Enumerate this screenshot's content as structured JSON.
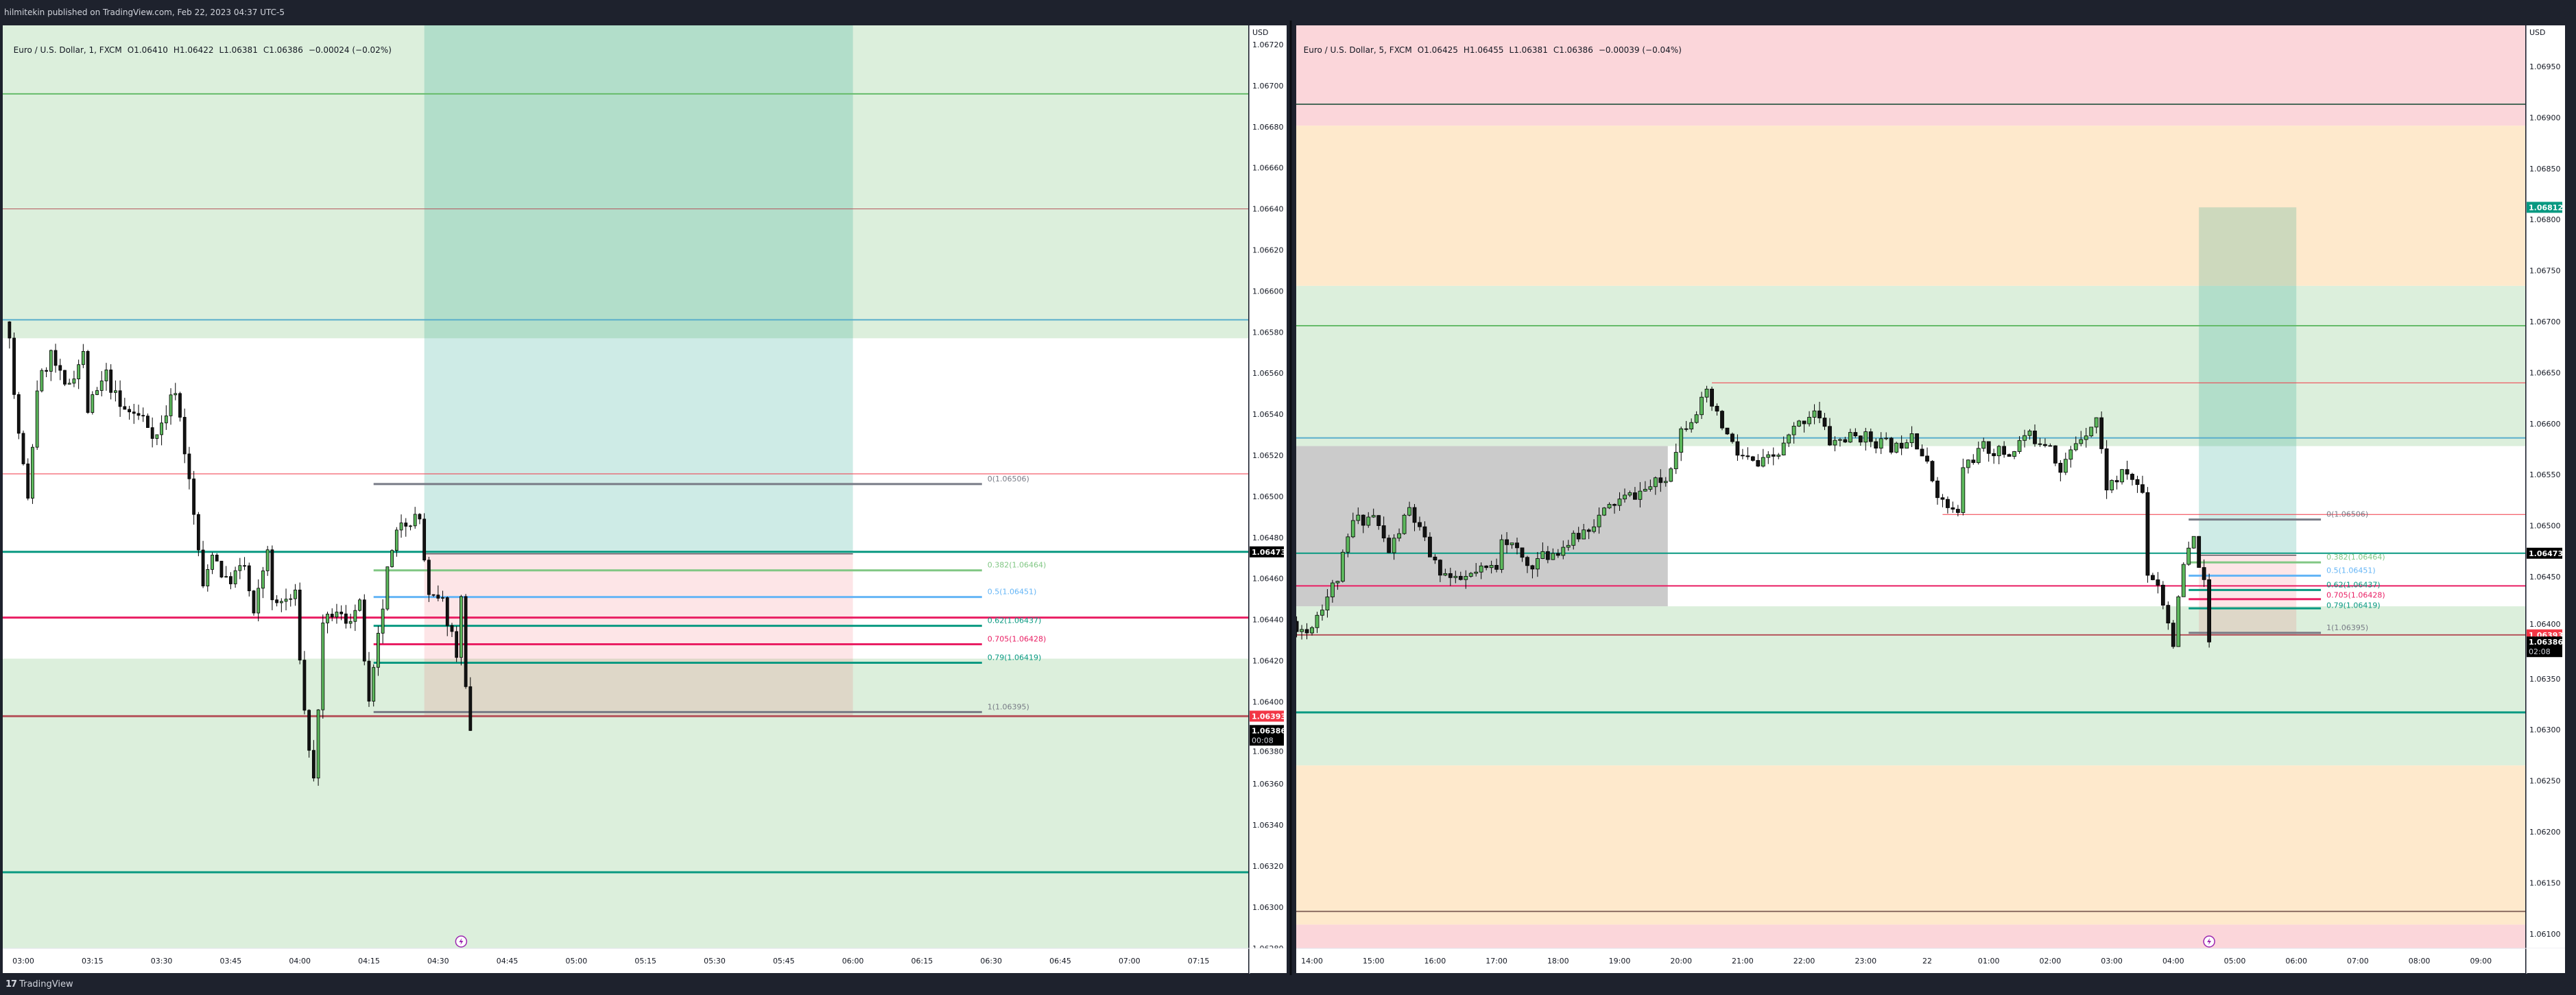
{
  "header": {
    "published": "hilmitekin published on TradingView.com, Feb 22, 2023 04:37 UTC-5"
  },
  "footer": {
    "logo": "TradingView",
    "logo_mark": "17",
    "logo_icon": "tradingview-logo-icon"
  },
  "colors": {
    "up_candle": "#5cb85c",
    "down_candle": "#131313",
    "zone_green": "#dcefdc",
    "zone_orange": "#fee9cc",
    "zone_pink": "#fbd6da",
    "range_box": "#cbcbcb",
    "target_zone": "#b0dfc9",
    "target_zone_light": "#cde9e3",
    "stop_zone": "#fde6e6",
    "teal": "#089981",
    "crimson": "#e91e63",
    "red": "#f23645",
    "blue": "#5aaecb",
    "green": "#66bb6a",
    "brown_red": "#b5545c",
    "dark_line": "#4a6a5a",
    "brown": "#8d6e63",
    "event_icon": "#9c27b0"
  },
  "chart_data": [
    {
      "type": "candlestick",
      "legend": {
        "symbol": "Euro / U.S. Dollar, 1, FXCM",
        "open": "O1.06410",
        "high": "H1.06422",
        "low": "L1.06381",
        "close": "C1.06386",
        "change": "−0.00024 (−0.02%)"
      },
      "currency": "USD",
      "price_ticks": [
        "1.06720",
        "1.06700",
        "1.06680",
        "1.06660",
        "1.06640",
        "1.06620",
        "1.06600",
        "1.06580",
        "1.06560",
        "1.06540",
        "1.06520",
        "1.06500",
        "1.06480",
        "1.06460",
        "1.06440",
        "1.06420",
        "1.06400",
        "1.06380",
        "1.06360",
        "1.06340",
        "1.06320",
        "1.06300",
        "1.06280"
      ],
      "ylim": [
        1.0628,
        1.0672
      ],
      "time_ticks": [
        "03:00",
        "03:15",
        "03:30",
        "03:45",
        "04:00",
        "04:15",
        "04:30",
        "04:45",
        "05:00",
        "05:15",
        "05:30",
        "05:45",
        "06:00",
        "06:15",
        "06:30",
        "06:45",
        "07:00",
        "07:15"
      ],
      "interval_minutes": 1,
      "price_path": [
        [
          "02:57",
          1.06581
        ],
        [
          "02:58",
          1.06548
        ],
        [
          "03:01",
          1.06497
        ],
        [
          "03:03",
          1.06553
        ],
        [
          "03:06",
          1.06569
        ],
        [
          "03:09",
          1.06552
        ],
        [
          "03:13",
          1.06569
        ],
        [
          "03:14",
          1.06542
        ],
        [
          "03:18",
          1.06559
        ],
        [
          "03:21",
          1.06543
        ],
        [
          "03:26",
          1.06538
        ],
        [
          "03:29",
          1.06529
        ],
        [
          "03:33",
          1.06553
        ],
        [
          "03:35",
          1.06523
        ],
        [
          "03:38",
          1.06474
        ],
        [
          "03:39",
          1.06454
        ],
        [
          "03:41",
          1.06474
        ],
        [
          "03:44",
          1.06458
        ],
        [
          "03:48",
          1.06466
        ],
        [
          "03:50",
          1.06441
        ],
        [
          "03:53",
          1.06476
        ],
        [
          "03:54",
          1.06447
        ],
        [
          "03:59",
          1.06451
        ],
        [
          "04:01",
          1.06395
        ],
        [
          "04:03",
          1.06361
        ],
        [
          "04:05",
          1.06435
        ],
        [
          "04:07",
          1.06443
        ],
        [
          "04:10",
          1.0644
        ],
        [
          "04:13",
          1.06446
        ],
        [
          "04:15",
          1.06397
        ],
        [
          "04:19",
          1.06463
        ],
        [
          "04:22",
          1.06489
        ],
        [
          "04:26",
          1.06489
        ],
        [
          "04:28",
          1.0645
        ],
        [
          "04:31",
          1.06448
        ],
        [
          "04:34",
          1.06425
        ],
        [
          "04:35",
          1.06449
        ],
        [
          "04:36",
          1.0641
        ],
        [
          "04:37",
          1.06386
        ]
      ],
      "zones": [
        {
          "from": 1.069,
          "to": 1.06577,
          "color": "zone_green"
        },
        {
          "from": 1.06421,
          "to": 1.062,
          "color": "zone_green"
        }
      ],
      "lines": [
        {
          "price": 1.06696,
          "color": "green",
          "width": 2
        },
        {
          "price": 1.0664,
          "color": "brown_red",
          "width": 1
        },
        {
          "price": 1.06586,
          "color": "blue",
          "width": 2
        },
        {
          "price": 1.06511,
          "color": "red",
          "width": 1
        },
        {
          "price": 1.06473,
          "color": "teal",
          "width": 3
        },
        {
          "price": 1.06441,
          "color": "crimson",
          "width": 3
        },
        {
          "price": 1.06393,
          "color": "brown_red",
          "width": 3
        },
        {
          "price": 1.06317,
          "color": "teal",
          "width": 3
        }
      ],
      "position": {
        "start": "04:27",
        "end": "06:00",
        "target": 1.06812,
        "entry": 1.06473,
        "stop": 1.06393
      },
      "fib": {
        "start": "04:16",
        "end": "06:28",
        "levels": [
          {
            "label": "0(1.06506)",
            "price": 1.06506,
            "color": "#787b86"
          },
          {
            "label": "0.382(1.06464)",
            "price": 1.06464,
            "color": "#81c784"
          },
          {
            "label": "0.5(1.06451)",
            "price": 1.06451,
            "color": "#64b5f6"
          },
          {
            "label": "0.62(1.06437)",
            "price": 1.06437,
            "color": "#089981"
          },
          {
            "label": "0.705(1.06428)",
            "price": 1.06428,
            "color": "#e91e63"
          },
          {
            "label": "0.79(1.06419)",
            "price": 1.06419,
            "color": "#089981"
          },
          {
            "label": "1(1.06395)",
            "price": 1.06395,
            "color": "#787b86"
          }
        ]
      },
      "badges": [
        {
          "text": "1.06473",
          "price": 1.06473,
          "bg": "#000000"
        },
        {
          "text": "1.06393",
          "price": 1.06393,
          "bg": "#f23645"
        },
        {
          "text": "1.06386",
          "sub": "00:08",
          "price": 1.06386,
          "bg": "#000000"
        }
      ],
      "event_time": "04:35"
    },
    {
      "type": "candlestick",
      "legend": {
        "symbol": "Euro / U.S. Dollar, 5, FXCM",
        "open": "O1.06425",
        "high": "H1.06455",
        "low": "L1.06381",
        "close": "C1.06386",
        "change": "−0.00039 (−0.04%)"
      },
      "currency": "USD",
      "price_ticks": [
        "1.06950",
        "1.06900",
        "1.06850",
        "1.06800",
        "1.06750",
        "1.06700",
        "1.06650",
        "1.06600",
        "1.06550",
        "1.06500",
        "1.06450",
        "1.06400",
        "1.06350",
        "1.06300",
        "1.06250",
        "1.06200",
        "1.06150",
        "1.06100"
      ],
      "ylim": [
        1.0608,
        1.0697
      ],
      "time_ticks": [
        "14:00",
        "15:00",
        "16:00",
        "17:00",
        "18:00",
        "19:00",
        "20:00",
        "21:00",
        "22:00",
        "23:00",
        "22",
        "01:00",
        "02:00",
        "03:00",
        "04:00",
        "05:00",
        "06:00",
        "07:00",
        "08:00",
        "09:00"
      ],
      "interval_minutes": 5,
      "price_path": [
        [
          "13:35",
          1.06408
        ],
        [
          "13:55",
          1.06396
        ],
        [
          "14:25",
          1.06449
        ],
        [
          "14:40",
          1.06504
        ],
        [
          "15:00",
          1.0651
        ],
        [
          "15:15",
          1.06474
        ],
        [
          "15:35",
          1.06516
        ],
        [
          "16:00",
          1.06461
        ],
        [
          "16:20",
          1.06444
        ],
        [
          "17:00",
          1.06461
        ],
        [
          "17:05",
          1.06492
        ],
        [
          "17:30",
          1.06461
        ],
        [
          "17:55",
          1.06474
        ],
        [
          "18:15",
          1.06486
        ],
        [
          "18:55",
          1.06522
        ],
        [
          "19:20",
          1.06533
        ],
        [
          "19:45",
          1.06545
        ],
        [
          "20:00",
          1.06594
        ],
        [
          "20:25",
          1.06627
        ],
        [
          "20:35",
          1.06606
        ],
        [
          "20:55",
          1.0657
        ],
        [
          "21:15",
          1.06558
        ],
        [
          "21:35",
          1.0657
        ],
        [
          "21:50",
          1.06594
        ],
        [
          "22:10",
          1.06615
        ],
        [
          "22:25",
          1.06582
        ],
        [
          "22:55",
          1.06588
        ],
        [
          "23:30",
          1.06576
        ],
        [
          "23:45",
          1.06594
        ],
        [
          "00:00",
          1.06558
        ],
        [
          "00:15",
          1.06522
        ],
        [
          "00:30",
          1.0651
        ],
        [
          "00:35",
          1.06558
        ],
        [
          "00:55",
          1.06576
        ],
        [
          "01:20",
          1.0657
        ],
        [
          "01:35",
          1.06588
        ],
        [
          "02:00",
          1.06582
        ],
        [
          "02:10",
          1.06552
        ],
        [
          "02:25",
          1.06582
        ],
        [
          "02:45",
          1.06606
        ],
        [
          "02:55",
          1.06539
        ],
        [
          "03:15",
          1.06552
        ],
        [
          "03:30",
          1.06533
        ],
        [
          "03:35",
          1.06455
        ],
        [
          "03:45",
          1.06444
        ],
        [
          "04:00",
          1.06387
        ],
        [
          "04:10",
          1.06461
        ],
        [
          "04:20",
          1.06486
        ],
        [
          "04:30",
          1.06441
        ],
        [
          "04:35",
          1.06386
        ]
      ],
      "zones": [
        {
          "from": 1.07,
          "to": 1.06892,
          "color": "zone_pink"
        },
        {
          "from": 1.06892,
          "to": 1.06735,
          "color": "zone_orange"
        },
        {
          "from": 1.06735,
          "to": 1.06578,
          "color": "zone_green"
        },
        {
          "from": 1.06421,
          "to": 1.06265,
          "color": "zone_green"
        },
        {
          "from": 1.06265,
          "to": 1.06109,
          "color": "zone_orange"
        },
        {
          "from": 1.06109,
          "to": 1.06,
          "color": "zone_pink"
        }
      ],
      "range_box": {
        "start": "13:35",
        "end": "19:47",
        "top": 1.06578,
        "bottom": 1.06421
      },
      "lines": [
        {
          "price": 1.06913,
          "color": "dark_line",
          "width": 2
        },
        {
          "price": 1.06696,
          "color": "green",
          "width": 2
        },
        {
          "price": 1.0664,
          "color": "red",
          "width": 1,
          "start": "20:30"
        },
        {
          "price": 1.06586,
          "color": "blue",
          "width": 2
        },
        {
          "price": 1.06511,
          "color": "red",
          "width": 1,
          "start": "00:15"
        },
        {
          "price": 1.06473,
          "color": "teal",
          "width": 2
        },
        {
          "price": 1.06441,
          "color": "crimson",
          "width": 2
        },
        {
          "price": 1.06393,
          "color": "brown_red",
          "width": 2
        },
        {
          "price": 1.06317,
          "color": "teal",
          "width": 3
        },
        {
          "price": 1.06122,
          "color": "brown",
          "width": 2
        }
      ],
      "position": {
        "start": "04:25",
        "end": "06:00",
        "target": 1.06812,
        "entry": 1.06473,
        "stop": 1.06393
      },
      "fib": {
        "start": "04:15",
        "end": "06:24",
        "levels": [
          {
            "label": "0(1.06506)",
            "price": 1.06506,
            "color": "#787b86"
          },
          {
            "label": "0.382(1.06464)",
            "price": 1.06464,
            "color": "#81c784"
          },
          {
            "label": "0.5(1.06451)",
            "price": 1.06451,
            "color": "#64b5f6"
          },
          {
            "label": "0.62(1.06437)",
            "price": 1.06437,
            "color": "#089981"
          },
          {
            "label": "0.705(1.06428)",
            "price": 1.06428,
            "color": "#e91e63"
          },
          {
            "label": "0.79(1.06419)",
            "price": 1.06419,
            "color": "#089981"
          },
          {
            "label": "1(1.06395)",
            "price": 1.06395,
            "color": "#787b86"
          }
        ]
      },
      "badges": [
        {
          "text": "1.06812",
          "price": 1.06812,
          "bg": "#089981"
        },
        {
          "text": "1.06473",
          "price": 1.06473,
          "bg": "#000000"
        },
        {
          "text": "1.06393",
          "price": 1.06393,
          "bg": "#f23645"
        },
        {
          "text": "1.06386",
          "sub": "02:08",
          "price": 1.06386,
          "bg": "#000000"
        }
      ],
      "event_time": "04:35"
    }
  ]
}
